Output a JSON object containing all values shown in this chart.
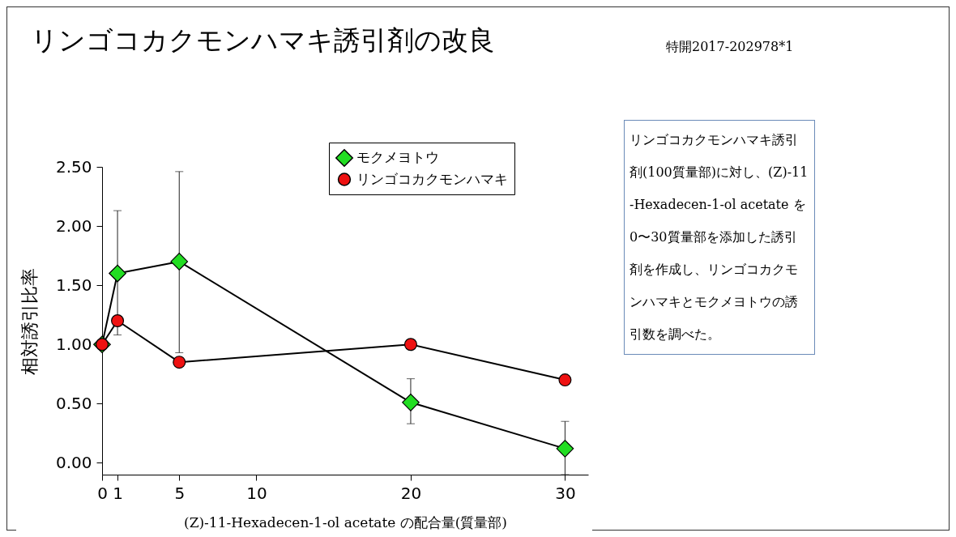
{
  "chart_data": {
    "type": "line",
    "title": "リンゴコカクモンハマキ誘引剤の改良",
    "subtitle": "特開2017-202978*1",
    "xlabel": "(Z)-11-Hexadecen-1-ol acetate の配合量(質量部)",
    "ylabel": "相対誘引比率",
    "x": [
      0,
      1,
      5,
      20,
      30
    ],
    "series": [
      {
        "name": "モクメヨトウ",
        "color": "#22dd22",
        "marker": "diamond",
        "values": [
          1.0,
          1.6,
          1.7,
          0.51,
          0.12
        ],
        "errors": [
          null,
          [
            1.08,
            2.13
          ],
          [
            0.93,
            2.46
          ],
          [
            0.33,
            0.71
          ],
          [
            -0.1,
            0.35
          ]
        ]
      },
      {
        "name": "リンゴコカクモンハマキ",
        "color": "#ee1111",
        "marker": "circle",
        "values": [
          1.0,
          1.2,
          0.85,
          1.0,
          0.7
        ]
      }
    ],
    "xlim": [
      0,
      31.5
    ],
    "xticks": [
      0,
      1,
      5,
      10,
      20,
      30
    ],
    "ylim": [
      -0.1,
      2.5
    ],
    "yticks": [
      {
        "value": 0,
        "label": "0.00"
      },
      {
        "value": 0.5,
        "label": "0.50"
      },
      {
        "value": 1,
        "label": "1.00"
      },
      {
        "value": 1.5,
        "label": "1.50"
      },
      {
        "value": 2,
        "label": "2.00"
      },
      {
        "value": 2.5,
        "label": "2.50"
      }
    ],
    "grid": false,
    "legend": "top right",
    "line_style": "solid",
    "annotations": [
      "リンゴコカクモンハマキ誘引剤(100質量部)に対し、(Z)-11-Hexadecen-1-ol acetate を0〜30質量部を添加した誘引剤を作成し、リンゴコカクモンハマキとモクメヨトウの誘引数を調べた。"
    ]
  }
}
